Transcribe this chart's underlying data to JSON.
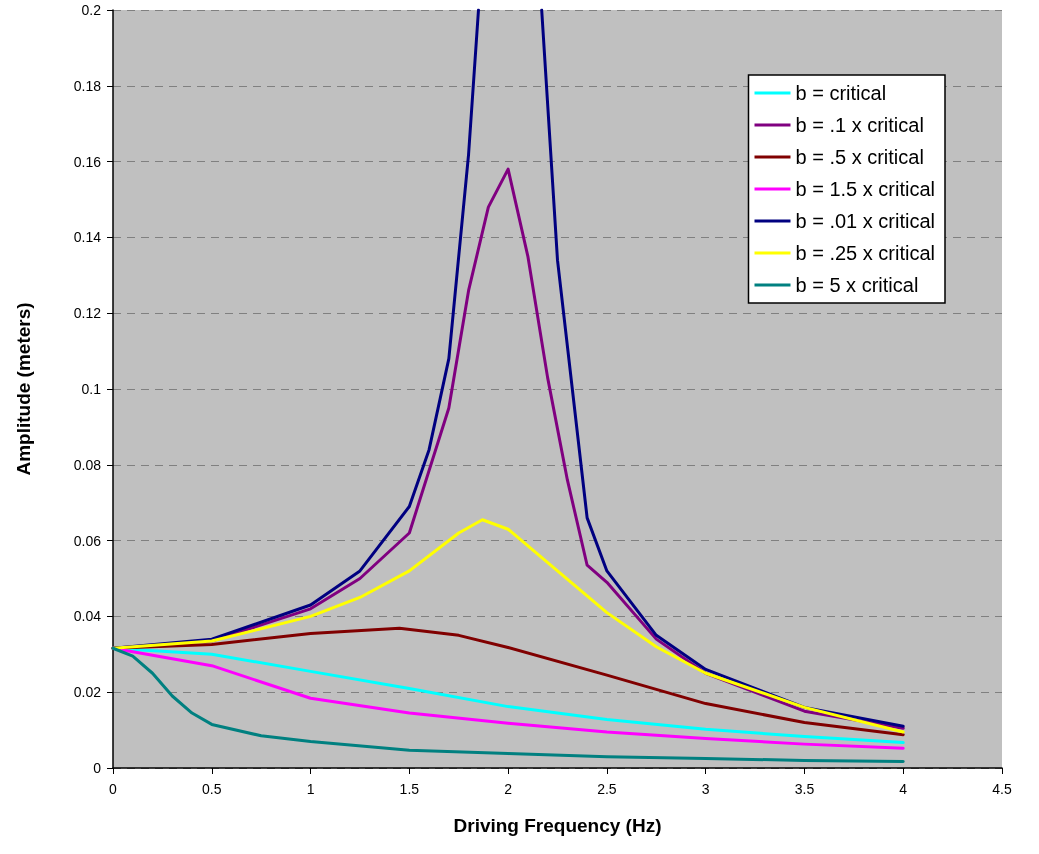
{
  "chart_data": {
    "type": "line",
    "xlabel": "Driving Frequency (Hz)",
    "ylabel": "Amplitude (meters)",
    "xlim": [
      0,
      4.5
    ],
    "xticks": [
      0,
      0.5,
      1,
      1.5,
      2,
      2.5,
      3,
      3.5,
      4,
      4.5
    ],
    "ylim": [
      0,
      0.2
    ],
    "yticks": [
      0,
      0.02,
      0.04,
      0.06,
      0.08,
      0.1,
      0.12,
      0.14,
      0.16,
      0.18,
      0.2
    ],
    "grid": "y",
    "legend": "top right",
    "marker": "none",
    "line_style": "solid",
    "series": [
      {
        "name": "b = critical",
        "color": "#00ffff",
        "x": [
          0,
          0.5,
          1,
          1.5,
          2,
          2.5,
          3,
          3.5,
          4
        ],
        "values": [
          0.0316,
          0.03,
          0.0255,
          0.021,
          0.0162,
          0.0128,
          0.0102,
          0.0083,
          0.0067
        ]
      },
      {
        "name": "b = .1 x critical",
        "color": "#800080",
        "x": [
          0,
          0.5,
          1,
          1.25,
          1.5,
          1.7,
          1.8,
          1.9,
          2,
          2.1,
          2.2,
          2.3,
          2.4,
          2.5,
          2.75,
          3,
          3.5,
          4
        ],
        "values": [
          0.0316,
          0.0335,
          0.042,
          0.05,
          0.062,
          0.095,
          0.126,
          0.148,
          0.158,
          0.135,
          0.103,
          0.076,
          0.0535,
          0.049,
          0.034,
          0.025,
          0.015,
          0.0105
        ]
      },
      {
        "name": "b = .5 x critical",
        "color": "#800000",
        "x": [
          0,
          0.5,
          1,
          1.45,
          1.75,
          2,
          2.5,
          3,
          3.5,
          4
        ],
        "values": [
          0.0316,
          0.0326,
          0.0355,
          0.0369,
          0.035,
          0.0318,
          0.0245,
          0.017,
          0.012,
          0.0088
        ]
      },
      {
        "name": "b = 1.5 x critical",
        "color": "#ff00ff",
        "x": [
          0,
          0.5,
          1,
          1.5,
          2,
          2.5,
          3,
          3.5,
          4
        ],
        "values": [
          0.0316,
          0.027,
          0.0184,
          0.0145,
          0.0118,
          0.0095,
          0.0078,
          0.0063,
          0.0052
        ]
      },
      {
        "name": "b = .01 x critical",
        "color": "#000080",
        "x": [
          0,
          0.5,
          1,
          1.25,
          1.5,
          1.6,
          1.7,
          1.8,
          1.85,
          2,
          2.17,
          2.25,
          2.4,
          2.5,
          2.75,
          3,
          3.5,
          4
        ],
        "values": [
          0.0316,
          0.034,
          0.043,
          0.052,
          0.069,
          0.084,
          0.108,
          0.162,
          0.2,
          null,
          0.2,
          0.134,
          0.066,
          0.052,
          0.035,
          0.026,
          0.016,
          0.011
        ]
      },
      {
        "name": "b = .25 x critical",
        "color": "#ffff00",
        "x": [
          0,
          0.5,
          1,
          1.25,
          1.5,
          1.75,
          1.87,
          2,
          2.25,
          2.5,
          2.75,
          3,
          3.5,
          4
        ],
        "values": [
          0.0316,
          0.0335,
          0.04,
          0.045,
          0.052,
          0.062,
          0.0655,
          0.063,
          0.052,
          0.041,
          0.032,
          0.025,
          0.016,
          0.0095
        ]
      },
      {
        "name": "b = 5 x critical",
        "color": "#008080",
        "x": [
          0,
          0.1,
          0.2,
          0.3,
          0.4,
          0.5,
          0.75,
          1,
          1.5,
          2,
          2.5,
          3,
          3.5,
          4
        ],
        "values": [
          0.0316,
          0.0295,
          0.025,
          0.019,
          0.0145,
          0.0115,
          0.0085,
          0.007,
          0.0047,
          0.0038,
          0.003,
          0.0025,
          0.002,
          0.0017
        ]
      }
    ]
  }
}
